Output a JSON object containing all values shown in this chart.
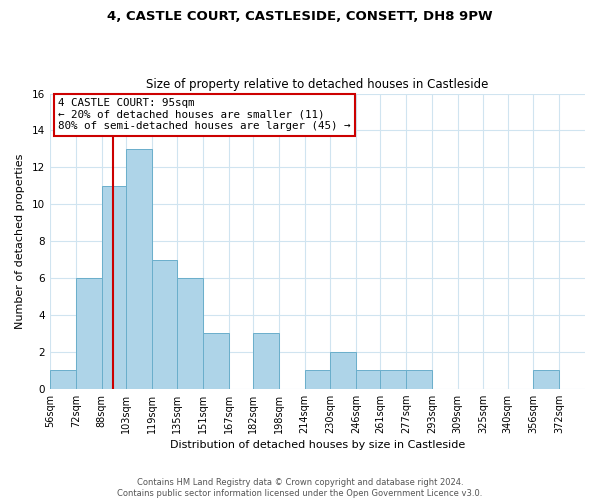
{
  "title": "4, CASTLE COURT, CASTLESIDE, CONSETT, DH8 9PW",
  "subtitle": "Size of property relative to detached houses in Castleside",
  "xlabel": "Distribution of detached houses by size in Castleside",
  "ylabel": "Number of detached properties",
  "bin_labels": [
    "56sqm",
    "72sqm",
    "88sqm",
    "103sqm",
    "119sqm",
    "135sqm",
    "151sqm",
    "167sqm",
    "182sqm",
    "198sqm",
    "214sqm",
    "230sqm",
    "246sqm",
    "261sqm",
    "277sqm",
    "293sqm",
    "309sqm",
    "325sqm",
    "340sqm",
    "356sqm",
    "372sqm"
  ],
  "bin_edges": [
    56,
    72,
    88,
    103,
    119,
    135,
    151,
    167,
    182,
    198,
    214,
    230,
    246,
    261,
    277,
    293,
    309,
    325,
    340,
    356,
    372,
    388
  ],
  "bar_heights": [
    1,
    6,
    11,
    13,
    7,
    6,
    3,
    0,
    3,
    0,
    1,
    2,
    1,
    1,
    1,
    0,
    0,
    0,
    0,
    1,
    0
  ],
  "property_line_x": 95,
  "bar_color": "#aed4e8",
  "bar_edge_color": "#6aaecb",
  "line_color": "#cc0000",
  "annotation_title": "4 CASTLE COURT: 95sqm",
  "annotation_line1": "← 20% of detached houses are smaller (11)",
  "annotation_line2": "80% of semi-detached houses are larger (45) →",
  "annotation_box_facecolor": "#ffffff",
  "annotation_box_edgecolor": "#cc0000",
  "ylim": [
    0,
    16
  ],
  "yticks": [
    0,
    2,
    4,
    6,
    8,
    10,
    12,
    14,
    16
  ],
  "footer_line1": "Contains HM Land Registry data © Crown copyright and database right 2024.",
  "footer_line2": "Contains public sector information licensed under the Open Government Licence v3.0.",
  "grid_color": "#d0e4f0",
  "title_fontsize": 9.5,
  "subtitle_fontsize": 8.5,
  "annotation_fontsize": 7.8,
  "axis_label_fontsize": 8.0,
  "tick_fontsize": 7.0,
  "footer_fontsize": 6.0
}
